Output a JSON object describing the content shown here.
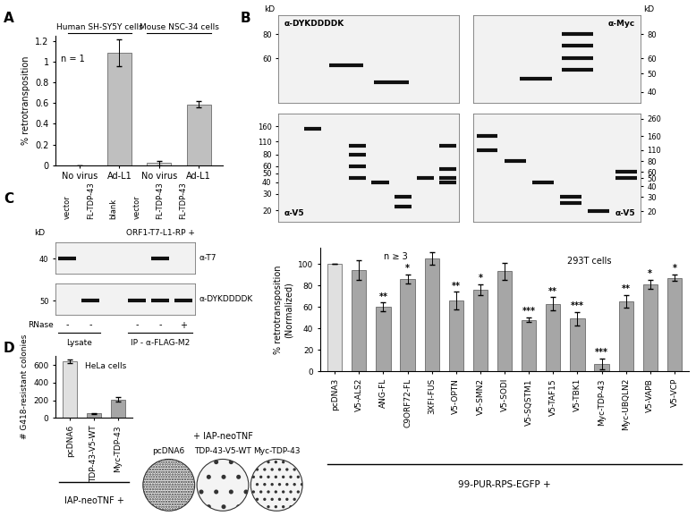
{
  "panel_labels": [
    "A",
    "B",
    "C",
    "D"
  ],
  "chart_data": [
    {
      "type": "bar",
      "categories": [
        "No virus",
        "Ad-L1",
        "No virus",
        "Ad-L1"
      ],
      "values": [
        0,
        1.09,
        0.02,
        0.59
      ],
      "error": [
        0,
        0.13,
        0.02,
        0.03
      ],
      "colors": [
        "#d9d9d9",
        "#bfbfbf",
        "#d9d9d9",
        "#bfbfbf"
      ],
      "ylabel": "% retrotransposition",
      "ylim": [
        0,
        1.25
      ],
      "yticks": [
        0,
        0.2,
        0.4,
        0.6,
        0.8,
        1,
        1.2
      ],
      "group_labels": [
        "Human SH-SY5Y cells",
        "Mouse NSC-34 cells"
      ],
      "annotations": [
        "n = 1"
      ]
    },
    {
      "type": "bar",
      "categories": [
        "pcDNA3",
        "V5-ALS2",
        "ANG-FL",
        "C9ORF72-FL",
        "3XFl-FUS",
        "V5-OPTN",
        "V5-SMN2",
        "V5-SODI",
        "V5-SQSTM1",
        "V5-TAF15",
        "V5-TBK1",
        "Myc-TDP-43",
        "Myc-UBQLN2",
        "V5-VAPB",
        "V5-VCP"
      ],
      "values": [
        100,
        94,
        60,
        86,
        105,
        66,
        76,
        93,
        48,
        63,
        49,
        7,
        65,
        81,
        87
      ],
      "error": [
        0,
        9,
        4,
        4,
        6,
        8,
        5,
        8,
        2,
        6,
        6,
        5,
        6,
        4,
        3
      ],
      "significance": [
        "",
        "",
        "**",
        "*",
        "",
        "**",
        "*",
        "",
        "***",
        "**",
        "***",
        "***",
        "**",
        "*",
        "*"
      ],
      "colors": [
        "#e0e0e0",
        "#a6a6a6",
        "#a6a6a6",
        "#a6a6a6",
        "#a6a6a6",
        "#a6a6a6",
        "#a6a6a6",
        "#a6a6a6",
        "#a6a6a6",
        "#a6a6a6",
        "#a6a6a6",
        "#a6a6a6",
        "#a6a6a6",
        "#a6a6a6",
        "#a6a6a6"
      ],
      "ylabel": "% retrotransposition\n(Normalized)",
      "ylim": [
        0,
        115
      ],
      "yticks": [
        0,
        20,
        40,
        60,
        80,
        100
      ],
      "annotations": [
        "n ≥ 3",
        "293T cells"
      ],
      "footer": "99-PUR-RPS-EGFP +"
    },
    {
      "type": "bar",
      "categories": [
        "pcDNA6",
        "TDP-43-V5-WT",
        "Myc-TDP-43"
      ],
      "values": [
        640,
        50,
        210
      ],
      "error": [
        20,
        8,
        25
      ],
      "colors": [
        "#e0e0e0",
        "#a6a6a6",
        "#a6a6a6"
      ],
      "ylabel": "# G418-resistant colonies",
      "ylim": [
        0,
        700
      ],
      "yticks": [
        0,
        200,
        400,
        600
      ],
      "annotations": [
        "HeLa cells"
      ],
      "footer": "IAP-neoTNF +"
    }
  ],
  "blots": {
    "unit": "kD",
    "B": [
      {
        "antibody": "α-DYKDDDDK",
        "markers": [
          80,
          60
        ],
        "ylim": [
          35,
          100
        ],
        "lanes": 4,
        "bands": [
          [
            2,
            55
          ],
          [
            3,
            45
          ]
        ]
      },
      {
        "antibody": "α-Myc",
        "markers": [
          80,
          60,
          50,
          40
        ],
        "ylim": [
          35,
          100
        ],
        "lanes": 4,
        "bands": [
          [
            2,
            47
          ],
          [
            3,
            80
          ],
          [
            3,
            70
          ],
          [
            3,
            60
          ],
          [
            3,
            52
          ]
        ]
      },
      {
        "antibody": "α-V5",
        "markers": [
          160,
          110,
          80,
          60,
          50,
          40,
          30,
          20
        ],
        "ylim": [
          15,
          220
        ],
        "lanes": 8,
        "bands": [
          [
            2,
            150
          ],
          [
            4,
            100
          ],
          [
            4,
            80
          ],
          [
            4,
            60
          ],
          [
            4,
            45
          ],
          [
            5,
            40
          ],
          [
            6,
            28
          ],
          [
            6,
            22
          ],
          [
            7,
            45
          ],
          [
            8,
            100
          ],
          [
            8,
            55
          ],
          [
            8,
            45
          ],
          [
            8,
            40
          ]
        ]
      },
      {
        "antibody": "α-V5",
        "markers": [
          260,
          160,
          110,
          80,
          60,
          50,
          40,
          30,
          20
        ],
        "ylim": [
          15,
          300
        ],
        "lanes": 6,
        "bands": [
          [
            1,
            160
          ],
          [
            1,
            110
          ],
          [
            2,
            80
          ],
          [
            3,
            45
          ],
          [
            4,
            30
          ],
          [
            4,
            25
          ],
          [
            5,
            20
          ],
          [
            6,
            60
          ],
          [
            6,
            50
          ]
        ]
      }
    ],
    "C": {
      "lane_labels": [
        "vector",
        "FL-TDP-43",
        "blank",
        "vector",
        "FL-TDP-43",
        "FL-TDP-43"
      ],
      "construct": "ORF1-T7-L1-RP +",
      "rnase_label": "RNase",
      "rnase": [
        "-",
        "-",
        null,
        "-",
        "-",
        "+"
      ],
      "group_labels": [
        "Lysate",
        "IP - α-FLAG-M2"
      ],
      "strips": [
        {
          "antibody": "α-T7",
          "markers": [
            40
          ],
          "ylim": [
            30,
            55
          ],
          "bands": [
            [
              1,
              40
            ],
            [
              5,
              40
            ]
          ]
        },
        {
          "antibody": "α-DYKDDDDK",
          "markers": [
            50
          ],
          "ylim": [
            40,
            65
          ],
          "bands": [
            [
              2,
              50
            ],
            [
              4,
              50
            ],
            [
              5,
              50
            ],
            [
              6,
              50
            ]
          ]
        }
      ]
    }
  },
  "plates": {
    "title": "+ IAP-neoTNF",
    "labels": [
      "pcDNA6",
      "TDP-43-V5-WT",
      "Myc-TDP-43"
    ]
  }
}
